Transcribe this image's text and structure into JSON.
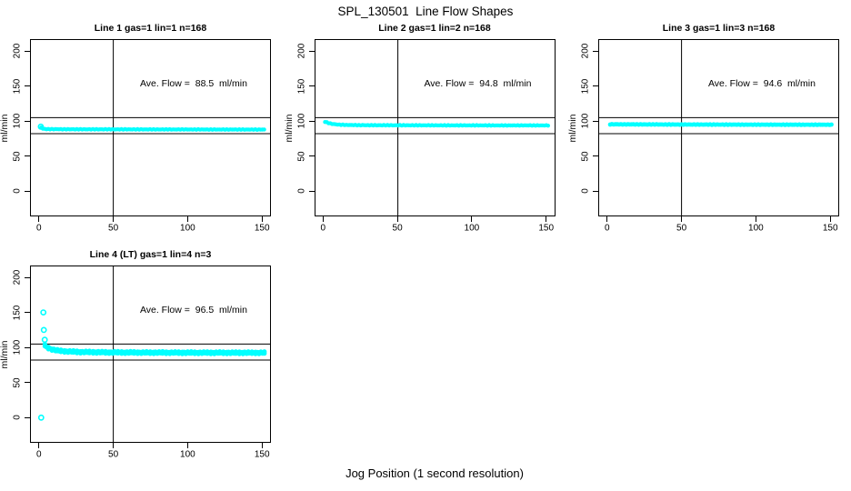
{
  "page_title": "SPL_130501  Line Flow Shapes",
  "xlabel": "Jog Position (1 second resolution)",
  "colors": {
    "data_color": "#00FFFF",
    "axis_color": "#000000",
    "background": "#FFFFFF"
  },
  "chart_data": [
    {
      "type": "scatter",
      "title": "Line 1 gas=1 lin=1 n=168",
      "annotation": "Ave. Flow =  88.5  ml/min",
      "ave_flow_ml_min": 88.5,
      "n_runs": 168,
      "ylabel": "ml/min",
      "xlim": [
        -6,
        156
      ],
      "ylim": [
        -36,
        217
      ],
      "x_ticks": [
        0,
        50,
        100,
        150
      ],
      "y_ticks": [
        0,
        50,
        100,
        150,
        200
      ],
      "h_ref_lines": [
        105,
        82
      ],
      "v_ref_line": 50,
      "band_profile": [
        [
          1.5,
          91
        ],
        [
          2.5,
          89.2
        ],
        [
          5,
          88.5
        ],
        [
          20,
          88.3
        ],
        [
          80,
          88.1
        ],
        [
          152,
          87.9
        ]
      ],
      "band_thickness": 4.4,
      "jitter": 0.6,
      "outlier_points": [
        [
          1.3,
          92
        ]
      ]
    },
    {
      "type": "scatter",
      "title": "Line 2 gas=1 lin=2 n=168",
      "annotation": "Ave. Flow =  94.8  ml/min",
      "ave_flow_ml_min": 94.8,
      "n_runs": 168,
      "ylabel": "ml/min",
      "xlim": [
        -6,
        156
      ],
      "ylim": [
        -36,
        217
      ],
      "x_ticks": [
        0,
        50,
        100,
        150
      ],
      "y_ticks": [
        0,
        50,
        100,
        150,
        200
      ],
      "h_ref_lines": [
        105,
        82
      ],
      "v_ref_line": 50,
      "band_profile": [
        [
          1,
          99
        ],
        [
          2.5,
          98
        ],
        [
          4,
          96.8
        ],
        [
          6.5,
          95.8
        ],
        [
          10,
          94.9
        ],
        [
          16,
          94.4
        ],
        [
          30,
          94.1
        ],
        [
          80,
          93.9
        ],
        [
          152,
          93.8
        ]
      ],
      "band_thickness": 4.4,
      "jitter": 0.6,
      "outlier_points": []
    },
    {
      "type": "scatter",
      "title": "Line 3 gas=1 lin=3 n=168",
      "annotation": "Ave. Flow =  94.6  ml/min",
      "ave_flow_ml_min": 94.6,
      "n_runs": 168,
      "ylabel": "ml/min",
      "xlim": [
        -6,
        156
      ],
      "ylim": [
        -36,
        217
      ],
      "x_ticks": [
        0,
        50,
        100,
        150
      ],
      "y_ticks": [
        0,
        50,
        100,
        150,
        200
      ],
      "h_ref_lines": [
        105,
        82
      ],
      "v_ref_line": 50,
      "band_profile": [
        [
          2,
          95.4
        ],
        [
          40,
          95.1
        ],
        [
          100,
          94.9
        ],
        [
          151,
          94.8
        ]
      ],
      "band_thickness": 4.8,
      "jitter": 0.5,
      "outlier_points": []
    },
    {
      "type": "scatter",
      "title": "Line 4 (LT) gas=1 lin=4 n=3",
      "annotation": "Ave. Flow =  96.5  ml/min",
      "ave_flow_ml_min": 96.5,
      "n_runs": 3,
      "ylabel": "ml/min",
      "xlim": [
        -6,
        156
      ],
      "ylim": [
        -36,
        217
      ],
      "x_ticks": [
        0,
        50,
        100,
        150
      ],
      "y_ticks": [
        0,
        50,
        100,
        150,
        200
      ],
      "h_ref_lines": [
        105,
        82
      ],
      "v_ref_line": 50,
      "band_profile": [
        [
          4,
          103
        ],
        [
          5.5,
          100.2
        ],
        [
          8,
          97.8
        ],
        [
          12,
          95.8
        ],
        [
          18,
          94.5
        ],
        [
          28,
          93.6
        ],
        [
          45,
          93.1
        ],
        [
          70,
          92.8
        ],
        [
          110,
          92.6
        ],
        [
          152,
          92.5
        ]
      ],
      "band_thickness": 5.2,
      "jitter": 1.4,
      "outlier_points": [
        [
          1.5,
          0
        ],
        [
          3,
          150
        ],
        [
          3.3,
          125
        ],
        [
          3.9,
          111
        ]
      ]
    }
  ]
}
